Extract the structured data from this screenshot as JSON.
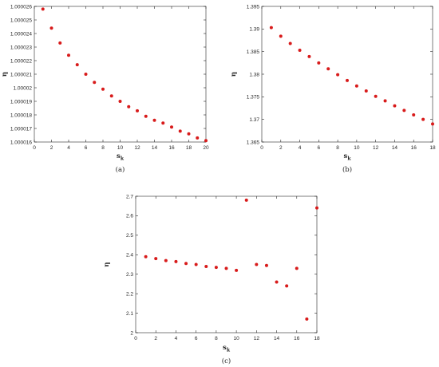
{
  "colors": {
    "marker": "#d81b1b",
    "axis": "#262626"
  },
  "chart_data": [
    {
      "id": "a",
      "type": "scatter",
      "caption": "(a)",
      "xlabel": "s",
      "xlabel_sub": "k",
      "ylabel": "η",
      "xlim": [
        0,
        20
      ],
      "ylim": [
        1.000016,
        1.000026
      ],
      "xticks": [
        0,
        2,
        4,
        6,
        8,
        10,
        12,
        14,
        16,
        18,
        20
      ],
      "yticks": [
        1.000016,
        1.000017,
        1.000018,
        1.000019,
        1.00002,
        1.000021,
        1.000022,
        1.000023,
        1.000024,
        1.000025,
        1.000026
      ],
      "ytick_labels": [
        "1.000016",
        "1.000017",
        "1.000018",
        "1.000019",
        "1.00002",
        "1.000021",
        "1.000022",
        "1.000023",
        "1.000024",
        "1.000025",
        "1.000026"
      ],
      "x": [
        1,
        2,
        3,
        4,
        5,
        6,
        7,
        8,
        9,
        10,
        11,
        12,
        13,
        14,
        15,
        16,
        17,
        18,
        19,
        20
      ],
      "y": [
        1.0000258,
        1.0000244,
        1.0000233,
        1.0000224,
        1.0000217,
        1.000021,
        1.0000204,
        1.0000199,
        1.0000194,
        1.000019,
        1.0000186,
        1.0000183,
        1.0000179,
        1.0000176,
        1.0000174,
        1.0000171,
        1.0000168,
        1.0000166,
        1.0000163,
        1.0000161
      ]
    },
    {
      "id": "b",
      "type": "scatter",
      "caption": "(b)",
      "xlabel": "s",
      "xlabel_sub": "k",
      "ylabel": "η",
      "xlim": [
        0,
        18
      ],
      "ylim": [
        1.365,
        1.395
      ],
      "xticks": [
        0,
        2,
        4,
        6,
        8,
        10,
        12,
        14,
        16,
        18
      ],
      "yticks": [
        1.365,
        1.37,
        1.375,
        1.38,
        1.385,
        1.39,
        1.395
      ],
      "ytick_labels": [
        "1.365",
        "1.37",
        "1.375",
        "1.38",
        "1.385",
        "1.39",
        "1.395"
      ],
      "x": [
        1,
        2,
        3,
        4,
        5,
        6,
        7,
        8,
        9,
        10,
        11,
        12,
        13,
        14,
        15,
        16,
        17,
        18
      ],
      "y": [
        1.3903,
        1.3884,
        1.3868,
        1.3853,
        1.3839,
        1.3825,
        1.3812,
        1.3799,
        1.3786,
        1.3774,
        1.3763,
        1.3751,
        1.3741,
        1.373,
        1.372,
        1.371,
        1.37,
        1.369
      ]
    },
    {
      "id": "c",
      "type": "scatter",
      "caption": "(c)",
      "xlabel": "s",
      "xlabel_sub": "k",
      "ylabel": "η",
      "xlim": [
        0,
        18
      ],
      "ylim": [
        2.0,
        2.7
      ],
      "xticks": [
        0,
        2,
        4,
        6,
        8,
        10,
        12,
        14,
        16,
        18
      ],
      "yticks": [
        2.0,
        2.1,
        2.2,
        2.3,
        2.4,
        2.5,
        2.6,
        2.7
      ],
      "ytick_labels": [
        "2",
        "2.1",
        "2.2",
        "2.3",
        "2.4",
        "2.5",
        "2.6",
        "2.7"
      ],
      "x": [
        1,
        2,
        3,
        4,
        5,
        6,
        7,
        8,
        9,
        10,
        11,
        12,
        13,
        14,
        15,
        16,
        17,
        18
      ],
      "y": [
        2.39,
        2.38,
        2.37,
        2.365,
        2.355,
        2.35,
        2.34,
        2.335,
        2.33,
        2.32,
        2.68,
        2.35,
        2.345,
        2.26,
        2.24,
        2.33,
        2.07,
        2.64
      ]
    }
  ]
}
